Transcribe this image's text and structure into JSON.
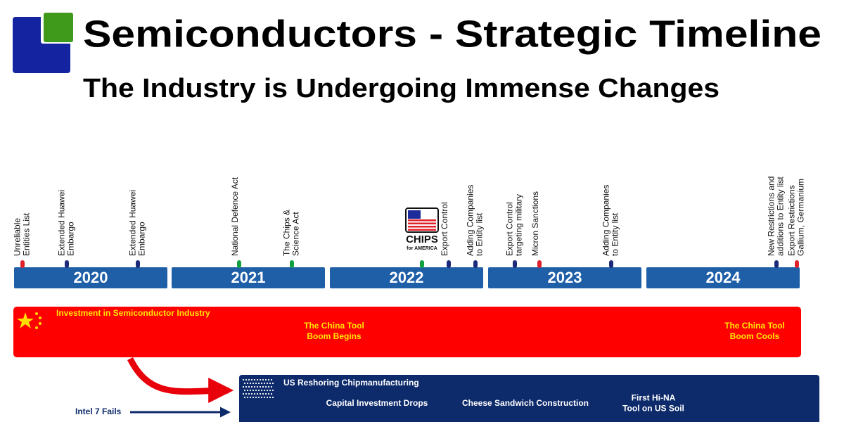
{
  "header": {
    "title": "Semiconductors - Strategic Timeline",
    "subtitle": "The Industry is Undergoing Immense Changes"
  },
  "years": [
    "2020",
    "2021",
    "2022",
    "2023",
    "2024"
  ],
  "events": [
    {
      "label": [
        "Unreliable",
        "Entities List"
      ],
      "color": "#e0202a"
    },
    {
      "label": [
        "Extended Huawei",
        "Embargo"
      ],
      "color": "#1c2a7a"
    },
    {
      "label": [
        "Extended Huawei",
        "Embargo"
      ],
      "color": "#1c2a7a"
    },
    {
      "label": [
        "National Defence Act"
      ],
      "color": "#10a040"
    },
    {
      "label": [
        "The Chips &",
        "Science Act"
      ],
      "color": "#10a040"
    },
    {
      "logo": {
        "title": "CHIPS",
        "subtitle": "for AMERICA"
      },
      "color": "#10a040"
    },
    {
      "label": [
        "Export Control"
      ],
      "color": "#1c2a7a"
    },
    {
      "label": [
        "Adding Companies",
        "to Entity list"
      ],
      "color": "#1c2a7a"
    },
    {
      "label": [
        "Export Control",
        "targeting military"
      ],
      "color": "#1c2a7a"
    },
    {
      "label": [
        "Micron Sanctions"
      ],
      "color": "#e0202a"
    },
    {
      "label": [
        "Adding Companies",
        "to Entity list"
      ],
      "color": "#1c2a7a"
    },
    {
      "label": [
        "New Restrictions and",
        "additions to Entity list"
      ],
      "color": "#1c2a7a"
    },
    {
      "label": [
        "Export Restrictions",
        "Gallium, Germanium"
      ],
      "color": "#e0202a"
    }
  ],
  "china": {
    "title": "Investment in Semiconductor Industry",
    "notes": [
      [
        "The China Tool",
        "Boom Begins"
      ],
      [
        "The China Tool",
        "Boom Cools"
      ]
    ]
  },
  "us": {
    "title": "US Reshoring Chipmanufacturing",
    "notes": [
      [
        "Capital Investment Drops"
      ],
      [
        "Cheese Sandwich Construction"
      ],
      [
        "First Hi-NA",
        "Tool on US Soil"
      ]
    ]
  },
  "intel": "Intel 7 Fails"
}
